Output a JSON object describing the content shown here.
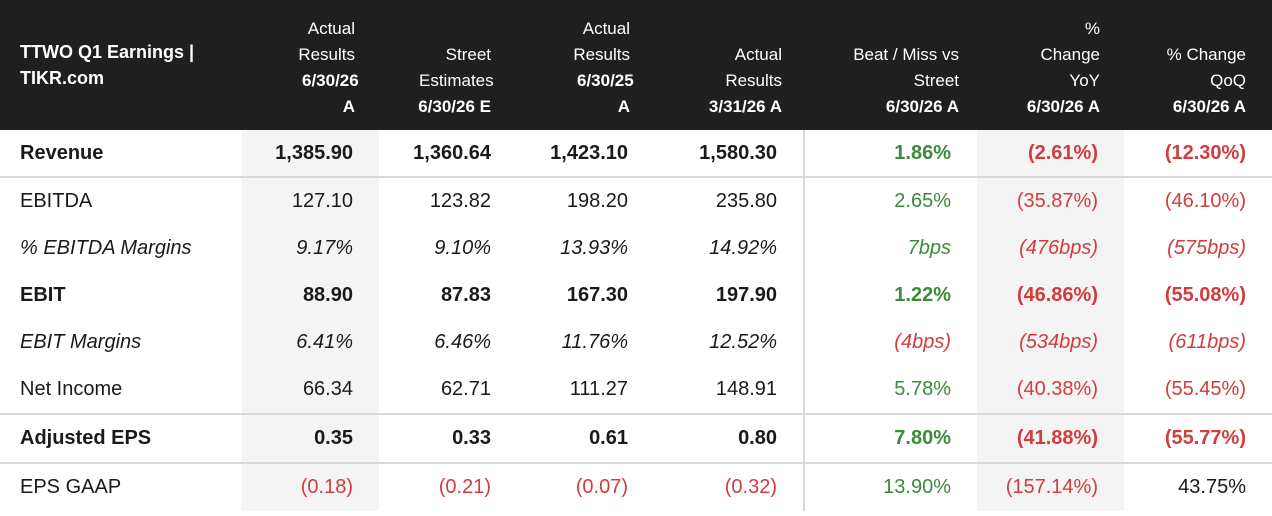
{
  "table": {
    "title_line1": "TTWO Q1 Earnings |",
    "title_line2": "TIKR.com",
    "columns": [
      {
        "label": "Actual Results",
        "period": "6/30/26 A"
      },
      {
        "label": "Street Estimates",
        "period": "6/30/26 E"
      },
      {
        "label": "Actual Results",
        "period": "6/30/25 A"
      },
      {
        "label": "Actual Results",
        "period": "3/31/26 A"
      },
      {
        "label": "Beat / Miss vs Street",
        "period": "6/30/26 A"
      },
      {
        "label": "% Change YoY",
        "period": "6/30/26 A"
      },
      {
        "label": "% Change QoQ",
        "period": "6/30/26 A"
      }
    ],
    "rows": [
      {
        "name": "Revenue",
        "cells": [
          "1,385.90",
          "1,360.64",
          "1,423.10",
          "1,580.30",
          "1.86%",
          "(2.61%)",
          "(12.30%)"
        ]
      },
      {
        "name": "EBITDA",
        "cells": [
          "127.10",
          "123.82",
          "198.20",
          "235.80",
          "2.65%",
          "(35.87%)",
          "(46.10%)"
        ]
      },
      {
        "name": "% EBITDA Margins",
        "cells": [
          "9.17%",
          "9.10%",
          "13.93%",
          "14.92%",
          "7bps",
          "(476bps)",
          "(575bps)"
        ]
      },
      {
        "name": "EBIT",
        "cells": [
          "88.90",
          "87.83",
          "167.30",
          "197.90",
          "1.22%",
          "(46.86%)",
          "(55.08%)"
        ]
      },
      {
        "name": "EBIT Margins",
        "cells": [
          "6.41%",
          "6.46%",
          "11.76%",
          "12.52%",
          "(4bps)",
          "(534bps)",
          "(611bps)"
        ]
      },
      {
        "name": "Net Income",
        "cells": [
          "66.34",
          "62.71",
          "111.27",
          "148.91",
          "5.78%",
          "(40.38%)",
          "(55.45%)"
        ]
      },
      {
        "name": "Adjusted EPS",
        "cells": [
          "0.35",
          "0.33",
          "0.61",
          "0.80",
          "7.80%",
          "(41.88%)",
          "(55.77%)"
        ]
      },
      {
        "name": "EPS GAAP",
        "cells": [
          "(0.18)",
          "(0.21)",
          "(0.07)",
          "(0.32)",
          "13.90%",
          "(157.14%)",
          "43.75%"
        ]
      }
    ]
  },
  "colors": {
    "header_bg": "#1f1f1f",
    "positive": "#3c8a3c",
    "negative": "#d23c3c",
    "shade": "#f4f4f4"
  },
  "chart_data": {
    "type": "table",
    "title": "TTWO Q1 Earnings | TIKR.com",
    "columns": [
      "Actual Results 6/30/26 A",
      "Street Estimates 6/30/26 E",
      "Actual Results 6/30/25 A",
      "Actual Results 3/31/26 A",
      "Beat / Miss vs Street 6/30/26 A",
      "% Change YoY 6/30/26 A",
      "% Change QoQ 6/30/26 A"
    ],
    "rows": [
      "Revenue",
      "EBITDA",
      "% EBITDA Margins",
      "EBIT",
      "EBIT Margins",
      "Net Income",
      "Adjusted EPS",
      "EPS GAAP"
    ]
  }
}
